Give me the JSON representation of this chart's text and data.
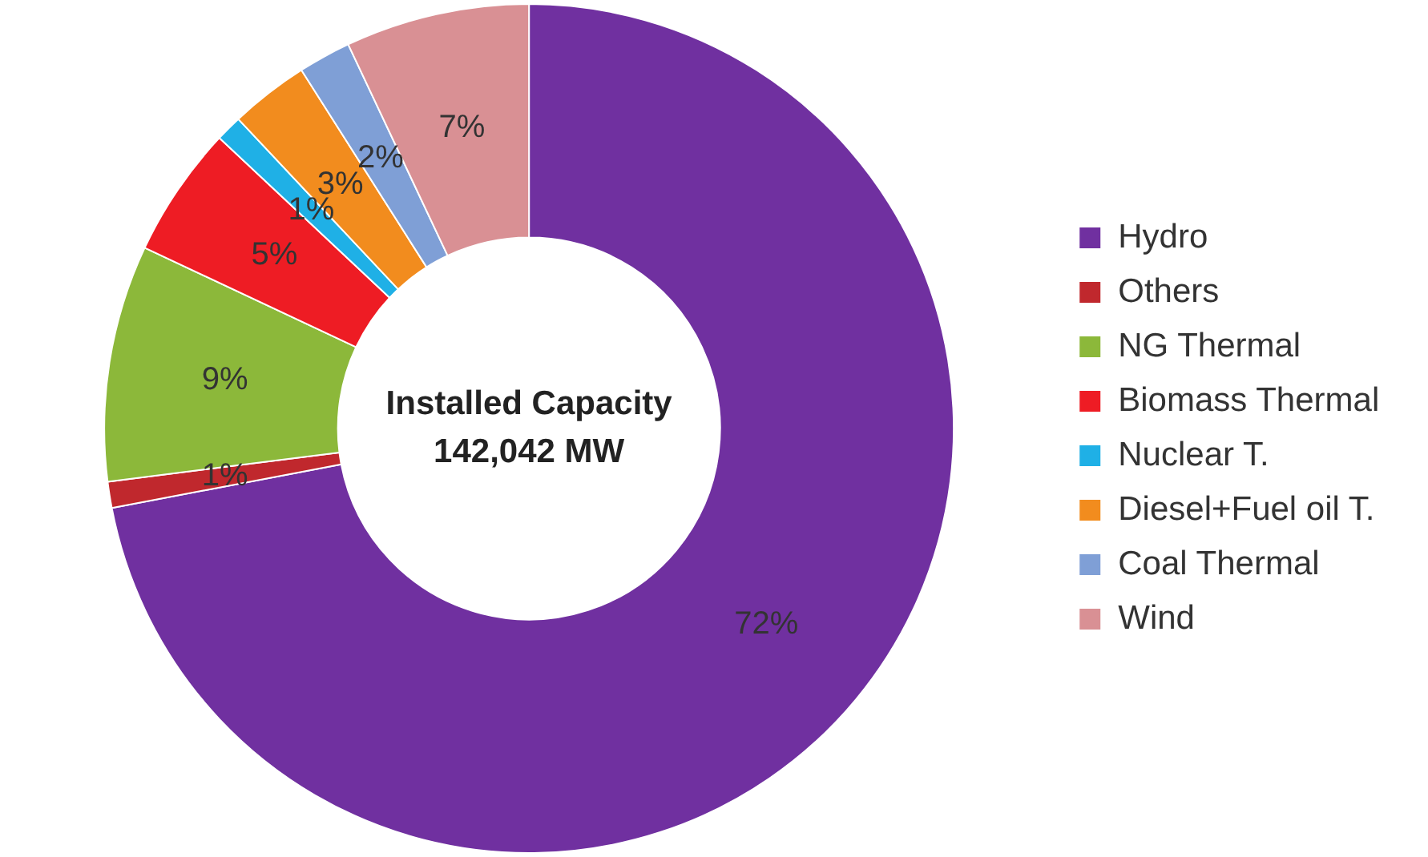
{
  "chart_data": {
    "type": "donut",
    "categories": [
      "Hydro",
      "Others",
      "NG Thermal",
      "Biomass Thermal",
      "Nuclear T.",
      "Diesel+Fuel oil T.",
      "Coal Thermal",
      "Wind"
    ],
    "values": [
      72,
      1,
      9,
      5,
      1,
      3,
      2,
      7
    ],
    "colors": [
      "#7030a0",
      "#c0282d",
      "#8cb83a",
      "#ee1c24",
      "#1fb0e6",
      "#f28c1e",
      "#7f9fd6",
      "#d99094"
    ],
    "value_labels": [
      "72%",
      "1%",
      "9%",
      "5%",
      "1%",
      "3%",
      "2%",
      "7%"
    ],
    "annotations": [
      "Installed Capacity 142,042 MW"
    ],
    "legend": "right"
  }
}
